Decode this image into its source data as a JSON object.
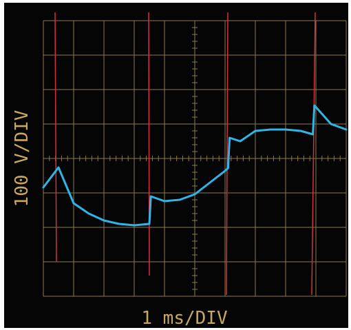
{
  "chart_data": {
    "type": "line",
    "x_label": "1 ms/DIV",
    "y_label": "100 V/DIV",
    "xlim": [
      -5,
      5
    ],
    "ylim": [
      -400,
      400
    ],
    "x": [
      -5,
      -4.5,
      -4,
      -3.5,
      -3,
      -2.5,
      -2,
      -1.5,
      -1.45,
      -1,
      -0.5,
      0,
      0.5,
      1,
      1.1,
      1.15,
      1.5,
      2,
      2.5,
      3,
      3.5,
      3.9,
      3.95,
      4.5,
      5
    ],
    "series": [
      {
        "color": "#2fb6e6",
        "values": [
          -84,
          -26,
          -130,
          -160,
          -180,
          -190,
          -194,
          -190,
          -110,
          -124,
          -120,
          -104,
          -70,
          -36,
          -28,
          60,
          50,
          80,
          84,
          84,
          80,
          70,
          154,
          100,
          84
        ]
      }
    ]
  }
}
